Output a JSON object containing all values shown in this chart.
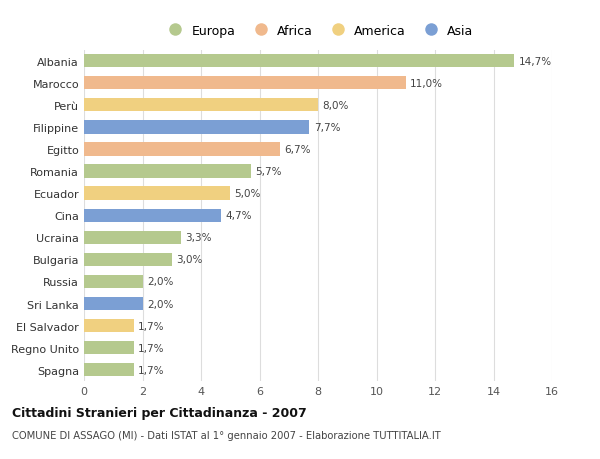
{
  "categories": [
    "Albania",
    "Marocco",
    "Perù",
    "Filippine",
    "Egitto",
    "Romania",
    "Ecuador",
    "Cina",
    "Ucraina",
    "Bulgaria",
    "Russia",
    "Sri Lanka",
    "El Salvador",
    "Regno Unito",
    "Spagna"
  ],
  "values": [
    14.7,
    11.0,
    8.0,
    7.7,
    6.7,
    5.7,
    5.0,
    4.7,
    3.3,
    3.0,
    2.0,
    2.0,
    1.7,
    1.7,
    1.7
  ],
  "labels": [
    "14,7%",
    "11,0%",
    "8,0%",
    "7,7%",
    "6,7%",
    "5,7%",
    "5,0%",
    "4,7%",
    "3,3%",
    "3,0%",
    "2,0%",
    "2,0%",
    "1,7%",
    "1,7%",
    "1,7%"
  ],
  "regions": [
    "Europa",
    "Africa",
    "America",
    "Asia",
    "Africa",
    "Europa",
    "America",
    "Asia",
    "Europa",
    "Europa",
    "Europa",
    "Asia",
    "America",
    "Europa",
    "Europa"
  ],
  "colors": {
    "Europa": "#b5c98e",
    "Africa": "#f0b98d",
    "America": "#f0d080",
    "Asia": "#7b9fd4"
  },
  "legend_order": [
    "Europa",
    "Africa",
    "America",
    "Asia"
  ],
  "title": "Cittadini Stranieri per Cittadinanza - 2007",
  "subtitle": "COMUNE DI ASSAGO (MI) - Dati ISTAT al 1° gennaio 2007 - Elaborazione TUTTITALIA.IT",
  "xlim": [
    0,
    16
  ],
  "xticks": [
    0,
    2,
    4,
    6,
    8,
    10,
    12,
    14,
    16
  ],
  "background_color": "#ffffff",
  "grid_color": "#dddddd",
  "bar_height": 0.6
}
